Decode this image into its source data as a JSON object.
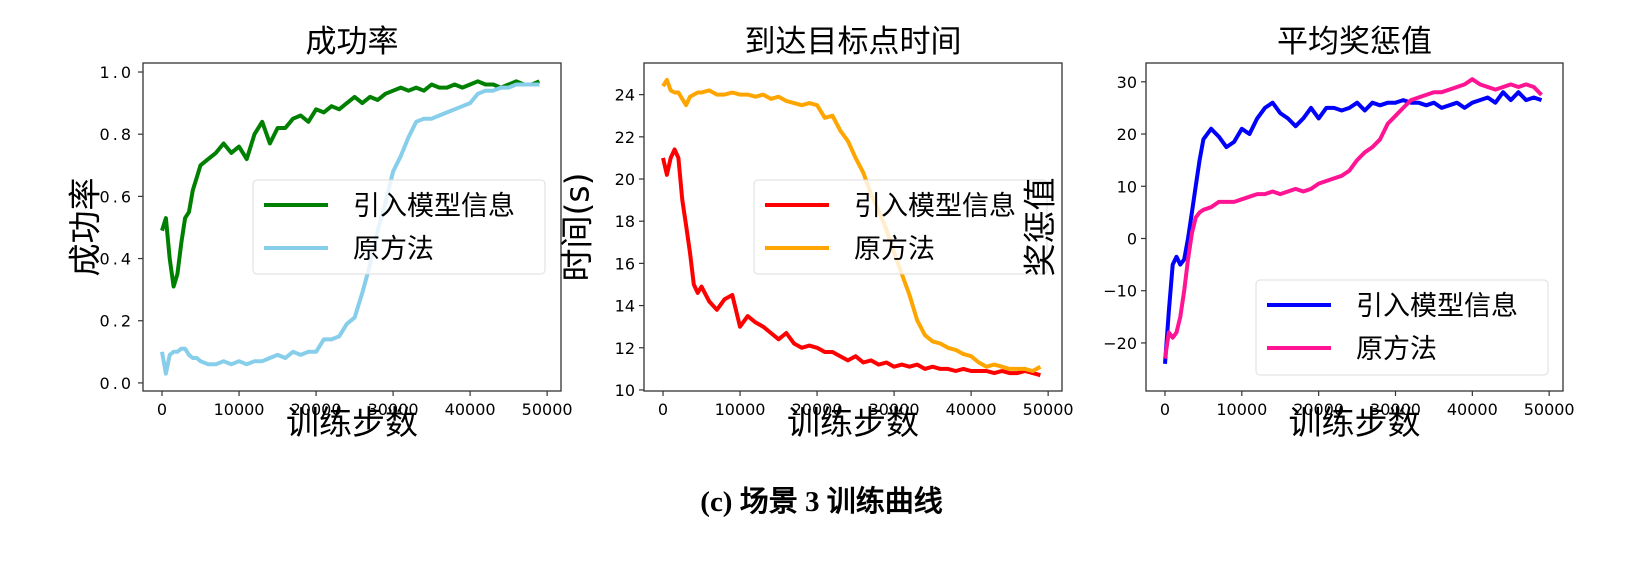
{
  "caption": "(c) 场景 3 训练曲线",
  "chart_data": [
    {
      "type": "line",
      "title": "成功率",
      "xlabel": "训练步数",
      "ylabel": "成功率",
      "xlim": [
        -2470,
        51800
      ],
      "ylim": [
        -0.026,
        1.029
      ],
      "xticks": [
        0,
        10000,
        20000,
        30000,
        40000,
        50000
      ],
      "xtick_labels": [
        "0",
        "10000",
        "20000",
        "30000",
        "40000",
        "50000"
      ],
      "yticks": [
        0.0,
        0.2,
        0.4,
        0.6,
        0.8,
        1.0
      ],
      "ytick_labels": [
        "0.0",
        "0.2",
        "0.4",
        "0.6",
        "0.8",
        "1.0"
      ],
      "legend": "center-right",
      "grid": false,
      "x": [
        0,
        500,
        1000,
        1500,
        2000,
        2500,
        3000,
        3500,
        4000,
        4500,
        5000,
        6000,
        7000,
        8000,
        9000,
        10000,
        11000,
        12000,
        13000,
        14000,
        15000,
        16000,
        17000,
        18000,
        19000,
        20000,
        21000,
        22000,
        23000,
        24000,
        25000,
        26000,
        27000,
        28000,
        29000,
        30000,
        31000,
        32000,
        33000,
        34000,
        35000,
        36000,
        37000,
        38000,
        39000,
        40000,
        41000,
        42000,
        43000,
        44000,
        45000,
        46000,
        47000,
        48000,
        49000
      ],
      "series": [
        {
          "name": "引入模型信息",
          "color": "#008000",
          "values": [
            0.49,
            0.53,
            0.4,
            0.31,
            0.35,
            0.45,
            0.53,
            0.55,
            0.62,
            0.66,
            0.7,
            0.72,
            0.74,
            0.77,
            0.74,
            0.76,
            0.72,
            0.8,
            0.84,
            0.77,
            0.82,
            0.82,
            0.85,
            0.86,
            0.84,
            0.88,
            0.87,
            0.89,
            0.88,
            0.9,
            0.92,
            0.9,
            0.92,
            0.91,
            0.93,
            0.94,
            0.95,
            0.94,
            0.95,
            0.94,
            0.96,
            0.95,
            0.95,
            0.96,
            0.95,
            0.96,
            0.97,
            0.96,
            0.96,
            0.95,
            0.96,
            0.97,
            0.96,
            0.96,
            0.97
          ]
        },
        {
          "name": "原方法",
          "color": "#87CEEB",
          "values": [
            0.1,
            0.03,
            0.09,
            0.1,
            0.1,
            0.11,
            0.11,
            0.09,
            0.08,
            0.08,
            0.07,
            0.06,
            0.06,
            0.07,
            0.06,
            0.07,
            0.06,
            0.07,
            0.07,
            0.08,
            0.09,
            0.08,
            0.1,
            0.09,
            0.1,
            0.1,
            0.14,
            0.14,
            0.15,
            0.19,
            0.21,
            0.29,
            0.38,
            0.49,
            0.58,
            0.68,
            0.73,
            0.79,
            0.84,
            0.85,
            0.85,
            0.86,
            0.87,
            0.88,
            0.89,
            0.9,
            0.93,
            0.94,
            0.94,
            0.95,
            0.95,
            0.96,
            0.96,
            0.96,
            0.96
          ]
        }
      ]
    },
    {
      "type": "line",
      "title": "到达目标点时间",
      "xlabel": "训练步数",
      "ylabel": "时间(s)",
      "xlim": [
        -2470,
        51800
      ],
      "ylim": [
        9.95,
        25.5
      ],
      "xticks": [
        0,
        10000,
        20000,
        30000,
        40000,
        50000
      ],
      "xtick_labels": [
        "0",
        "10000",
        "20000",
        "30000",
        "40000",
        "50000"
      ],
      "yticks": [
        10,
        12,
        14,
        16,
        18,
        20,
        22,
        24
      ],
      "ytick_labels": [
        "10",
        "12",
        "14",
        "16",
        "18",
        "20",
        "22",
        "24"
      ],
      "legend": "center-right",
      "grid": false,
      "x": [
        0,
        500,
        1000,
        1500,
        2000,
        2500,
        3000,
        3500,
        4000,
        4500,
        5000,
        6000,
        7000,
        8000,
        9000,
        10000,
        11000,
        12000,
        13000,
        14000,
        15000,
        16000,
        17000,
        18000,
        19000,
        20000,
        21000,
        22000,
        23000,
        24000,
        25000,
        26000,
        27000,
        28000,
        29000,
        30000,
        31000,
        32000,
        33000,
        34000,
        35000,
        36000,
        37000,
        38000,
        39000,
        40000,
        41000,
        42000,
        43000,
        44000,
        45000,
        46000,
        47000,
        48000,
        49000
      ],
      "series": [
        {
          "name": "引入模型信息",
          "color": "#FF0000",
          "values": [
            21.0,
            20.2,
            21.0,
            21.4,
            21.0,
            19.0,
            17.8,
            16.5,
            15.0,
            14.6,
            14.9,
            14.2,
            13.8,
            14.3,
            14.5,
            13.0,
            13.5,
            13.2,
            13.0,
            12.7,
            12.4,
            12.7,
            12.2,
            12.0,
            12.1,
            12.0,
            11.8,
            11.8,
            11.6,
            11.4,
            11.6,
            11.3,
            11.4,
            11.2,
            11.3,
            11.1,
            11.2,
            11.1,
            11.2,
            11.0,
            11.1,
            11.0,
            11.0,
            10.9,
            11.0,
            10.9,
            10.9,
            10.9,
            10.8,
            10.9,
            10.8,
            10.8,
            10.9,
            10.8,
            10.7
          ]
        },
        {
          "name": "原方法",
          "color": "#FFA500",
          "values": [
            24.4,
            24.7,
            24.2,
            24.1,
            24.1,
            23.8,
            23.5,
            23.9,
            24.0,
            24.1,
            24.1,
            24.2,
            24.0,
            24.0,
            24.1,
            24.0,
            24.0,
            23.9,
            24.0,
            23.8,
            23.9,
            23.7,
            23.6,
            23.5,
            23.6,
            23.5,
            22.9,
            23.0,
            22.3,
            21.8,
            21.0,
            20.3,
            19.3,
            18.5,
            17.6,
            16.5,
            15.5,
            14.5,
            13.3,
            12.6,
            12.3,
            12.2,
            12.0,
            11.9,
            11.7,
            11.6,
            11.3,
            11.1,
            11.2,
            11.1,
            11.0,
            11.0,
            11.0,
            10.9,
            11.1
          ]
        }
      ]
    },
    {
      "type": "line",
      "title": "平均奖惩值",
      "xlabel": "训练步数",
      "ylabel": "奖惩值",
      "xlim": [
        -2470,
        51800
      ],
      "ylim": [
        -29.2,
        33.6
      ],
      "xticks": [
        0,
        10000,
        20000,
        30000,
        40000,
        50000
      ],
      "xtick_labels": [
        "0",
        "10000",
        "20000",
        "30000",
        "40000",
        "50000"
      ],
      "yticks": [
        -20,
        -10,
        0,
        10,
        20,
        30
      ],
      "ytick_labels": [
        "−20",
        "−10",
        "0",
        "10",
        "20",
        "30"
      ],
      "legend": "lower-right",
      "grid": false,
      "x": [
        0,
        500,
        1000,
        1500,
        2000,
        2500,
        3000,
        3500,
        4000,
        4500,
        5000,
        6000,
        7000,
        8000,
        9000,
        10000,
        11000,
        12000,
        13000,
        14000,
        15000,
        16000,
        17000,
        18000,
        19000,
        20000,
        21000,
        22000,
        23000,
        24000,
        25000,
        26000,
        27000,
        28000,
        29000,
        30000,
        31000,
        32000,
        33000,
        34000,
        35000,
        36000,
        37000,
        38000,
        39000,
        40000,
        41000,
        42000,
        43000,
        44000,
        45000,
        46000,
        47000,
        48000,
        49000
      ],
      "series": [
        {
          "name": "引入模型信息",
          "color": "#0000FF",
          "values": [
            -24,
            -14,
            -5,
            -3.5,
            -5,
            -4,
            0,
            5,
            10,
            15,
            19,
            21,
            19.5,
            17.5,
            18.5,
            21,
            20,
            23,
            25,
            26,
            24,
            23,
            21.5,
            23,
            25,
            23,
            25,
            25,
            24.5,
            25,
            26,
            24.5,
            26,
            25.5,
            26,
            26,
            26.5,
            26,
            26,
            25.5,
            26,
            25,
            25.5,
            26,
            25,
            26,
            26.5,
            27,
            26,
            28,
            26.5,
            28,
            26.5,
            27,
            26.5
          ]
        },
        {
          "name": "原方法",
          "color": "#FF1493",
          "values": [
            -23,
            -18,
            -19,
            -18,
            -15,
            -10,
            -4,
            1,
            4,
            5,
            5.5,
            6,
            7,
            7,
            7,
            7.5,
            8,
            8.5,
            8.5,
            9,
            8.5,
            9,
            9.5,
            9,
            9.5,
            10.5,
            11,
            11.5,
            12,
            13,
            15,
            16.5,
            17.5,
            19,
            22,
            23.5,
            25,
            26.5,
            27,
            27.5,
            28,
            28,
            28.5,
            29,
            29.5,
            30.5,
            29.5,
            29,
            28.5,
            29,
            29.5,
            29,
            29.5,
            29,
            27.5
          ]
        }
      ]
    }
  ]
}
